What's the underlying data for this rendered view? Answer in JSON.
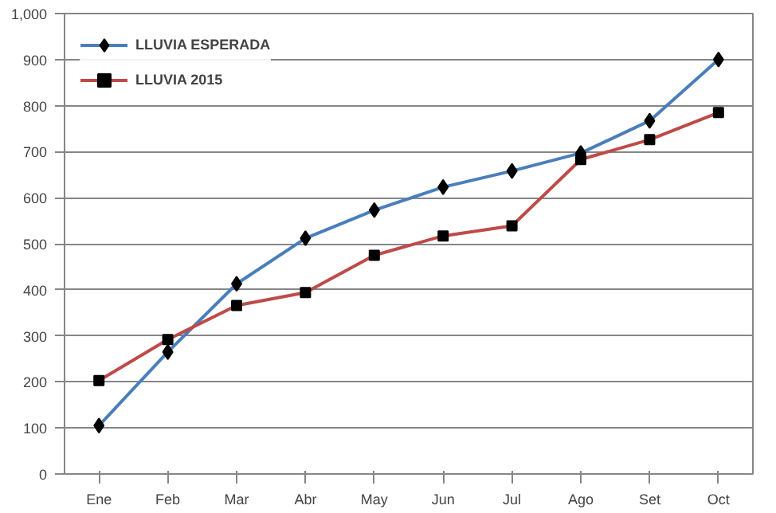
{
  "chart_data": {
    "type": "line",
    "categories": [
      "Ene",
      "Feb",
      "Mar",
      "Abr",
      "May",
      "Jun",
      "Jul",
      "Ago",
      "Set",
      "Oct"
    ],
    "series": [
      {
        "name": "LLUVIA ESPERADA",
        "color": "#4a7ebb",
        "marker": "diamond",
        "values": [
          105,
          265,
          413,
          512,
          573,
          623,
          658,
          697,
          767,
          900
        ]
      },
      {
        "name": "LLUVIA 2015",
        "color": "#be4b48",
        "marker": "square",
        "values": [
          203,
          292,
          366,
          394,
          475,
          517,
          539,
          683,
          726,
          785
        ]
      }
    ],
    "ylim": [
      0,
      1000
    ],
    "yticks": [
      0,
      100,
      200,
      300,
      400,
      500,
      600,
      700,
      800,
      900,
      {
        "value": 1000,
        "label": "1,000"
      }
    ],
    "grid": "y",
    "legend": "top left",
    "line_style": "solid"
  }
}
